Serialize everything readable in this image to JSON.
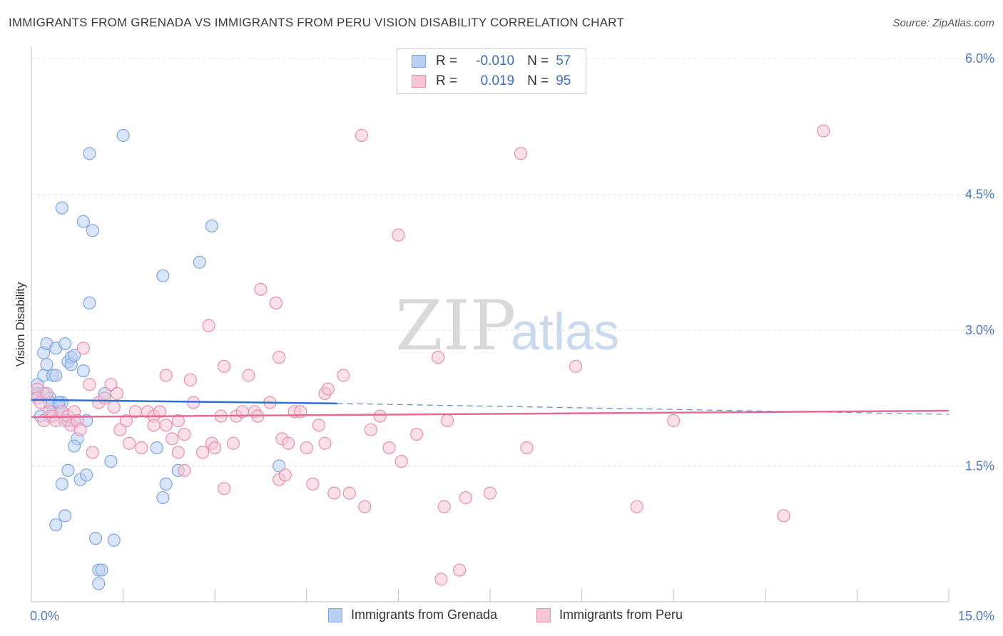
{
  "chart_data": {
    "type": "scatter",
    "title": "IMMIGRANTS FROM GRENADA VS IMMIGRANTS FROM PERU VISION DISABILITY CORRELATION CHART",
    "source": "Source: ZipAtlas.com",
    "xlabel": "",
    "ylabel": "Vision Disability",
    "xlim": [
      0,
      15
    ],
    "ylim": [
      0,
      6.3
    ],
    "x_tick_labels": {
      "left": "0.0%",
      "right": "15.0%"
    },
    "y_ticks": [
      1.5,
      3.0,
      4.5,
      6.0
    ],
    "y_tick_labels": [
      "1.5%",
      "3.0%",
      "4.5%",
      "6.0%"
    ],
    "grid": true,
    "watermark": {
      "zip": "ZIP",
      "atlas": "atlas"
    },
    "stats": [
      {
        "r_label": "R =",
        "r_value": "-0.010",
        "n_label": "N =",
        "n_value": "57"
      },
      {
        "r_label": "R =",
        "r_value": "0.019",
        "n_label": "N =",
        "n_value": "95"
      }
    ],
    "series": [
      {
        "name": "Immigrants from Grenada",
        "color": "#7fa6e0",
        "fill": "#b9cff3",
        "trend_color": "#2f6fd0",
        "trend": {
          "x0": 0.0,
          "y0": 2.23,
          "x1": 5.0,
          "y1": 2.19,
          "dash_x1": 15.0,
          "dash_y1": 2.07
        },
        "points": [
          [
            0.1,
            2.4
          ],
          [
            0.1,
            2.3
          ],
          [
            0.15,
            2.05
          ],
          [
            0.2,
            2.75
          ],
          [
            0.2,
            2.5
          ],
          [
            0.25,
            2.85
          ],
          [
            0.25,
            2.62
          ],
          [
            0.3,
            2.25
          ],
          [
            0.3,
            2.2
          ],
          [
            0.35,
            2.1
          ],
          [
            0.35,
            2.5
          ],
          [
            0.4,
            2.8
          ],
          [
            0.4,
            2.5
          ],
          [
            0.45,
            2.15
          ],
          [
            0.5,
            2.2
          ],
          [
            0.5,
            2.1
          ],
          [
            0.55,
            2.85
          ],
          [
            0.5,
            4.35
          ],
          [
            0.6,
            2.65
          ],
          [
            0.65,
            2.7
          ],
          [
            0.65,
            2.62
          ],
          [
            0.7,
            2.72
          ],
          [
            0.7,
            2.0
          ],
          [
            0.75,
            1.8
          ],
          [
            0.7,
            1.72
          ],
          [
            0.8,
            1.35
          ],
          [
            0.85,
            2.55
          ],
          [
            0.9,
            2.0
          ],
          [
            0.9,
            1.4
          ],
          [
            0.85,
            4.2
          ],
          [
            0.95,
            4.95
          ],
          [
            0.95,
            3.3
          ],
          [
            1.0,
            4.1
          ],
          [
            1.05,
            0.7
          ],
          [
            1.1,
            0.35
          ],
          [
            1.1,
            0.2
          ],
          [
            1.15,
            0.35
          ],
          [
            1.2,
            2.3
          ],
          [
            1.3,
            1.55
          ],
          [
            1.35,
            0.68
          ],
          [
            1.5,
            5.15
          ],
          [
            0.6,
            1.45
          ],
          [
            0.5,
            1.3
          ],
          [
            0.55,
            0.95
          ],
          [
            0.4,
            0.85
          ],
          [
            2.05,
            1.7
          ],
          [
            2.15,
            1.15
          ],
          [
            2.2,
            1.3
          ],
          [
            2.15,
            3.6
          ],
          [
            2.4,
            1.45
          ],
          [
            2.75,
            3.75
          ],
          [
            2.95,
            4.15
          ],
          [
            4.05,
            1.5
          ],
          [
            0.2,
            2.3
          ],
          [
            0.3,
            2.05
          ],
          [
            0.45,
            2.2
          ],
          [
            0.6,
            2.0
          ]
        ]
      },
      {
        "name": "Immigrants from Peru",
        "color": "#eb8fb0",
        "fill": "#f7c6d6",
        "trend_color": "#e46a95",
        "trend": {
          "x0": 0.0,
          "y0": 2.04,
          "x1": 15.0,
          "y1": 2.11
        },
        "points": [
          [
            0.1,
            2.35
          ],
          [
            0.1,
            2.25
          ],
          [
            0.15,
            2.2
          ],
          [
            0.2,
            2.0
          ],
          [
            0.25,
            2.3
          ],
          [
            0.3,
            2.1
          ],
          [
            0.35,
            2.05
          ],
          [
            0.4,
            2.0
          ],
          [
            0.5,
            2.1
          ],
          [
            0.55,
            2.0
          ],
          [
            0.6,
            2.05
          ],
          [
            0.65,
            1.95
          ],
          [
            0.7,
            2.1
          ],
          [
            0.75,
            2.0
          ],
          [
            0.8,
            1.9
          ],
          [
            0.85,
            2.8
          ],
          [
            0.95,
            2.4
          ],
          [
            1.0,
            1.65
          ],
          [
            1.1,
            2.2
          ],
          [
            1.2,
            2.25
          ],
          [
            1.3,
            2.4
          ],
          [
            1.35,
            2.15
          ],
          [
            1.4,
            2.3
          ],
          [
            1.45,
            1.9
          ],
          [
            1.55,
            2.0
          ],
          [
            1.6,
            1.75
          ],
          [
            1.7,
            2.1
          ],
          [
            1.8,
            1.7
          ],
          [
            1.9,
            2.1
          ],
          [
            2.0,
            2.05
          ],
          [
            2.0,
            1.95
          ],
          [
            2.1,
            2.1
          ],
          [
            2.2,
            1.95
          ],
          [
            2.3,
            1.8
          ],
          [
            2.4,
            2.0
          ],
          [
            2.5,
            1.85
          ],
          [
            2.2,
            2.5
          ],
          [
            2.4,
            1.65
          ],
          [
            2.5,
            1.45
          ],
          [
            2.6,
            2.45
          ],
          [
            2.65,
            2.2
          ],
          [
            2.8,
            1.65
          ],
          [
            2.9,
            3.05
          ],
          [
            2.95,
            1.75
          ],
          [
            3.0,
            1.7
          ],
          [
            3.1,
            2.05
          ],
          [
            3.15,
            2.6
          ],
          [
            3.15,
            1.25
          ],
          [
            3.3,
            1.75
          ],
          [
            3.35,
            2.05
          ],
          [
            3.45,
            2.1
          ],
          [
            3.55,
            2.5
          ],
          [
            3.65,
            2.1
          ],
          [
            3.7,
            2.05
          ],
          [
            3.75,
            3.45
          ],
          [
            3.9,
            2.2
          ],
          [
            4.0,
            3.3
          ],
          [
            4.05,
            2.7
          ],
          [
            4.05,
            1.35
          ],
          [
            4.1,
            1.8
          ],
          [
            4.2,
            1.75
          ],
          [
            4.3,
            2.1
          ],
          [
            4.4,
            2.1
          ],
          [
            4.5,
            1.7
          ],
          [
            4.6,
            1.3
          ],
          [
            4.7,
            1.95
          ],
          [
            4.8,
            2.3
          ],
          [
            4.8,
            1.75
          ],
          [
            4.85,
            2.35
          ],
          [
            4.95,
            1.2
          ],
          [
            5.1,
            2.5
          ],
          [
            5.2,
            1.2
          ],
          [
            5.4,
            5.15
          ],
          [
            5.45,
            1.05
          ],
          [
            5.55,
            1.9
          ],
          [
            5.7,
            2.05
          ],
          [
            5.85,
            1.7
          ],
          [
            6.0,
            4.05
          ],
          [
            6.05,
            1.55
          ],
          [
            6.3,
            1.85
          ],
          [
            6.65,
            2.7
          ],
          [
            6.7,
            0.25
          ],
          [
            6.75,
            1.05
          ],
          [
            6.8,
            2.0
          ],
          [
            7.0,
            0.35
          ],
          [
            7.1,
            1.15
          ],
          [
            7.5,
            1.2
          ],
          [
            8.0,
            4.95
          ],
          [
            8.1,
            1.7
          ],
          [
            8.9,
            2.6
          ],
          [
            9.9,
            1.05
          ],
          [
            10.5,
            2.0
          ],
          [
            12.3,
            0.95
          ],
          [
            12.95,
            5.2
          ],
          [
            4.15,
            1.4
          ]
        ]
      }
    ]
  }
}
